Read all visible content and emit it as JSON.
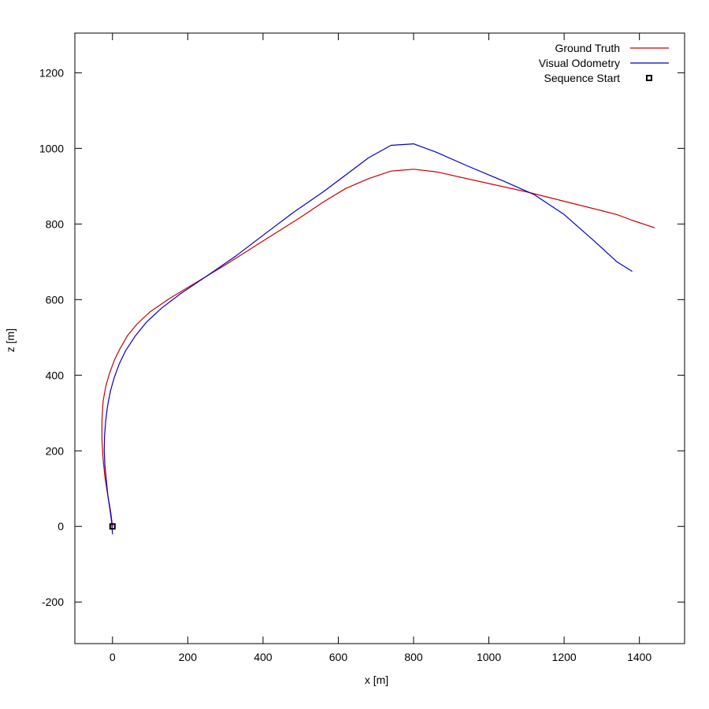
{
  "chart_data": {
    "type": "line",
    "title": "",
    "xlabel": "x [m]",
    "ylabel": "z [m]",
    "xlim": [
      -100,
      1520
    ],
    "ylim": [
      -310,
      1305
    ],
    "xticks": [
      0,
      200,
      400,
      600,
      800,
      1000,
      1200,
      1400
    ],
    "yticks": [
      -200,
      0,
      200,
      400,
      600,
      800,
      1000,
      1200
    ],
    "grid": false,
    "legend_position": "top-right",
    "series": [
      {
        "name": "Ground Truth",
        "color": "#cc0000",
        "style": "line",
        "points": [
          [
            0,
            0
          ],
          [
            -5,
            40
          ],
          [
            -12,
            80
          ],
          [
            -20,
            130
          ],
          [
            -25,
            180
          ],
          [
            -28,
            230
          ],
          [
            -28,
            280
          ],
          [
            -25,
            330
          ],
          [
            -18,
            370
          ],
          [
            -8,
            405
          ],
          [
            5,
            440
          ],
          [
            20,
            470
          ],
          [
            40,
            505
          ],
          [
            65,
            535
          ],
          [
            100,
            568
          ],
          [
            150,
            602
          ],
          [
            200,
            632
          ],
          [
            300,
            692
          ],
          [
            400,
            755
          ],
          [
            500,
            818
          ],
          [
            560,
            858
          ],
          [
            620,
            894
          ],
          [
            680,
            920
          ],
          [
            740,
            940
          ],
          [
            800,
            945
          ],
          [
            860,
            938
          ],
          [
            1000,
            907
          ],
          [
            1100,
            885
          ],
          [
            1200,
            860
          ],
          [
            1300,
            835
          ],
          [
            1340,
            825
          ],
          [
            1380,
            810
          ],
          [
            1440,
            790
          ]
        ]
      },
      {
        "name": "Visual Odometry",
        "color": "#0000cc",
        "style": "line",
        "points": [
          [
            0,
            -20
          ],
          [
            -2,
            10
          ],
          [
            -6,
            40
          ],
          [
            -12,
            80
          ],
          [
            -16,
            120
          ],
          [
            -20,
            160
          ],
          [
            -22,
            200
          ],
          [
            -21,
            240
          ],
          [
            -18,
            280
          ],
          [
            -13,
            320
          ],
          [
            -5,
            360
          ],
          [
            5,
            395
          ],
          [
            18,
            430
          ],
          [
            35,
            465
          ],
          [
            60,
            503
          ],
          [
            90,
            540
          ],
          [
            130,
            577
          ],
          [
            180,
            615
          ],
          [
            250,
            662
          ],
          [
            330,
            717
          ],
          [
            400,
            770
          ],
          [
            480,
            830
          ],
          [
            560,
            885
          ],
          [
            620,
            930
          ],
          [
            680,
            975
          ],
          [
            740,
            1008
          ],
          [
            800,
            1012
          ],
          [
            860,
            990
          ],
          [
            940,
            955
          ],
          [
            1040,
            913
          ],
          [
            1120,
            878
          ],
          [
            1200,
            825
          ],
          [
            1280,
            755
          ],
          [
            1340,
            700
          ],
          [
            1380,
            675
          ]
        ]
      },
      {
        "name": "Sequence Start",
        "color": "#000000",
        "style": "point",
        "points": [
          [
            0,
            0
          ]
        ]
      }
    ]
  }
}
